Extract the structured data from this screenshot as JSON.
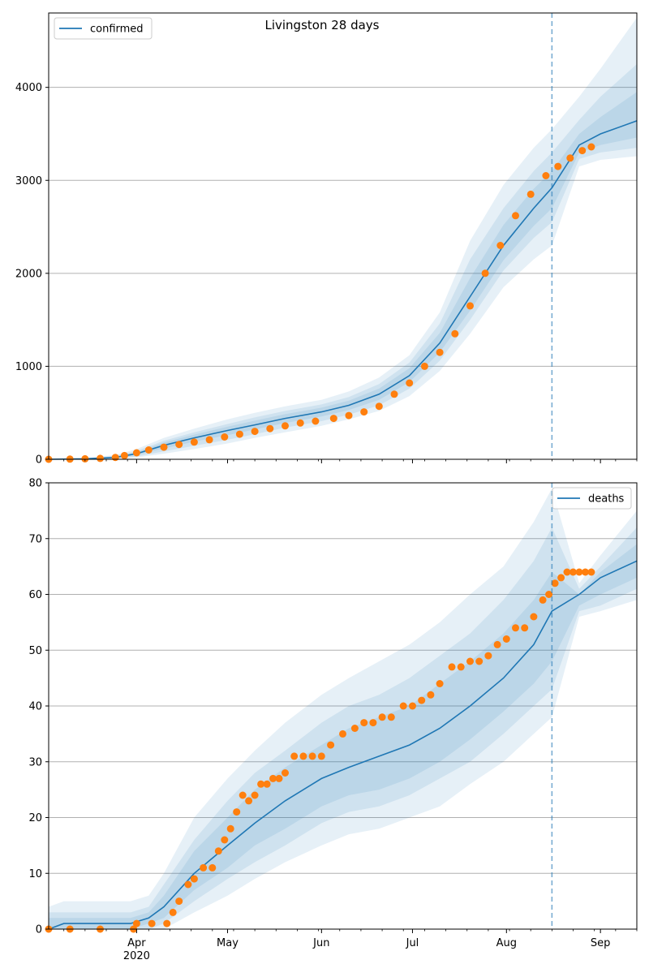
{
  "title": "Livingston 28 days",
  "colors": {
    "model_line": "#1f77b4",
    "observed_points": "#ff7f0e",
    "band": "#1f77b4",
    "grid": "#b0b0b0",
    "forecast_marker": "#1f77b4"
  },
  "x_axis": {
    "range": [
      "2020-03-03",
      "2020-09-13"
    ],
    "ticks": [
      {
        "date": "2020-04-01",
        "label": "Apr",
        "sublabel": "2020"
      },
      {
        "date": "2020-05-01",
        "label": "May",
        "sublabel": ""
      },
      {
        "date": "2020-06-01",
        "label": "Jun",
        "sublabel": ""
      },
      {
        "date": "2020-07-01",
        "label": "Jul",
        "sublabel": ""
      },
      {
        "date": "2020-08-01",
        "label": "Aug",
        "sublabel": ""
      },
      {
        "date": "2020-09-01",
        "label": "Sep",
        "sublabel": ""
      }
    ],
    "minor_ticks": [
      "2020-03-08",
      "2020-03-15",
      "2020-03-22",
      "2020-03-29",
      "2020-04-05",
      "2020-04-12",
      "2020-04-19",
      "2020-04-26",
      "2020-05-03",
      "2020-05-10",
      "2020-05-17",
      "2020-05-24",
      "2020-05-31",
      "2020-06-07",
      "2020-06-14",
      "2020-06-21",
      "2020-06-28",
      "2020-07-05",
      "2020-07-12",
      "2020-07-19",
      "2020-07-26",
      "2020-08-02",
      "2020-08-09",
      "2020-08-16",
      "2020-08-23",
      "2020-08-30",
      "2020-09-06",
      "2020-09-13"
    ],
    "forecast_start": "2020-08-16"
  },
  "chart_data": [
    {
      "type": "line",
      "panel": "top",
      "legend": {
        "label": "confirmed",
        "position": "upper-left"
      },
      "ylim": [
        0,
        4800
      ],
      "yticks": [
        0,
        1000,
        2000,
        3000,
        4000
      ],
      "grid": "horizontal",
      "model_series": {
        "name": "confirmed",
        "x": [
          "2020-03-03",
          "2020-03-15",
          "2020-03-25",
          "2020-04-01",
          "2020-04-10",
          "2020-04-20",
          "2020-05-01",
          "2020-05-10",
          "2020-05-20",
          "2020-06-01",
          "2020-06-10",
          "2020-06-20",
          "2020-06-30",
          "2020-07-10",
          "2020-07-20",
          "2020-07-31",
          "2020-08-10",
          "2020-08-16",
          "2020-08-25",
          "2020-09-01",
          "2020-09-13"
        ],
        "y": [
          0,
          5,
          20,
          60,
          150,
          230,
          310,
          370,
          440,
          510,
          580,
          700,
          900,
          1250,
          1750,
          2300,
          2700,
          2920,
          3380,
          3500,
          3640
        ]
      },
      "bands": [
        {
          "upper": [
            5,
            15,
            45,
            110,
            230,
            330,
            430,
            500,
            570,
            640,
            730,
            880,
            1120,
            1580,
            2350,
            2950,
            3350,
            3550,
            3900,
            4200,
            4750
          ],
          "lower": [
            0,
            0,
            5,
            20,
            60,
            110,
            170,
            230,
            290,
            360,
            430,
            520,
            680,
            950,
            1350,
            1850,
            2150,
            2300,
            3150,
            3220,
            3260
          ]
        },
        {
          "upper": [
            3,
            10,
            35,
            90,
            200,
            290,
            380,
            450,
            520,
            590,
            670,
            810,
            1040,
            1460,
            2150,
            2700,
            3100,
            3300,
            3650,
            3900,
            4250
          ],
          "lower": [
            0,
            1,
            8,
            30,
            85,
            145,
            210,
            270,
            340,
            410,
            480,
            580,
            760,
            1060,
            1500,
            2030,
            2380,
            2550,
            3230,
            3300,
            3350
          ]
        },
        {
          "upper": [
            1,
            7,
            28,
            75,
            180,
            265,
            350,
            415,
            485,
            555,
            630,
            760,
            980,
            1360,
            1950,
            2520,
            2910,
            3100,
            3500,
            3680,
            3950
          ],
          "lower": [
            0,
            2,
            12,
            45,
            115,
            190,
            260,
            320,
            390,
            460,
            530,
            640,
            830,
            1150,
            1600,
            2140,
            2510,
            2700,
            3300,
            3380,
            3460
          ]
        }
      ],
      "observed": {
        "x": [
          "2020-03-03",
          "2020-03-10",
          "2020-03-15",
          "2020-03-20",
          "2020-03-25",
          "2020-03-28",
          "2020-04-01",
          "2020-04-05",
          "2020-04-10",
          "2020-04-15",
          "2020-04-20",
          "2020-04-25",
          "2020-04-30",
          "2020-05-05",
          "2020-05-10",
          "2020-05-15",
          "2020-05-20",
          "2020-05-25",
          "2020-05-30",
          "2020-06-05",
          "2020-06-10",
          "2020-06-15",
          "2020-06-20",
          "2020-06-25",
          "2020-06-30",
          "2020-07-05",
          "2020-07-10",
          "2020-07-15",
          "2020-07-20",
          "2020-07-25",
          "2020-07-30",
          "2020-08-04",
          "2020-08-09",
          "2020-08-14",
          "2020-08-18",
          "2020-08-22",
          "2020-08-26",
          "2020-08-29"
        ],
        "y": [
          0,
          2,
          5,
          10,
          20,
          40,
          70,
          100,
          130,
          160,
          185,
          210,
          240,
          270,
          300,
          330,
          360,
          390,
          410,
          440,
          470,
          510,
          570,
          700,
          820,
          1000,
          1150,
          1350,
          1650,
          2000,
          2300,
          2620,
          2850,
          3050,
          3150,
          3240,
          3320,
          3360
        ]
      }
    },
    {
      "type": "line",
      "panel": "bottom",
      "legend": {
        "label": "deaths",
        "position": "upper-right"
      },
      "ylim": [
        0,
        80
      ],
      "yticks": [
        0,
        10,
        20,
        30,
        40,
        50,
        60,
        70,
        80
      ],
      "grid": "horizontal",
      "model_series": {
        "name": "deaths",
        "x": [
          "2020-03-03",
          "2020-03-08",
          "2020-03-30",
          "2020-04-05",
          "2020-04-10",
          "2020-04-20",
          "2020-05-01",
          "2020-05-10",
          "2020-05-20",
          "2020-06-01",
          "2020-06-10",
          "2020-06-20",
          "2020-06-30",
          "2020-07-10",
          "2020-07-20",
          "2020-07-31",
          "2020-08-10",
          "2020-08-16",
          "2020-08-25",
          "2020-09-01",
          "2020-09-13"
        ],
        "y": [
          0,
          1,
          1,
          2,
          4,
          10,
          15,
          19,
          23,
          27,
          29,
          31,
          33,
          36,
          40,
          45,
          51,
          57,
          60,
          63,
          66
        ]
      },
      "bands": [
        {
          "upper": [
            4,
            5,
            5,
            6,
            10,
            20,
            27,
            32,
            37,
            42,
            45,
            48,
            51,
            55,
            60,
            65,
            73,
            79,
            62,
            67,
            75
          ],
          "lower": [
            0,
            0,
            0,
            0,
            0,
            3,
            6,
            9,
            12,
            15,
            17,
            18,
            20,
            22,
            26,
            30,
            35,
            38,
            56,
            57,
            59
          ]
        },
        {
          "upper": [
            3,
            3,
            3,
            4,
            8,
            16,
            23,
            28,
            32,
            37,
            40,
            42,
            45,
            49,
            53,
            59,
            66,
            72,
            61,
            65,
            72
          ],
          "lower": [
            0,
            0,
            0,
            0,
            1,
            5,
            9,
            12,
            15,
            19,
            21,
            22,
            24,
            27,
            30,
            35,
            40,
            43,
            57,
            58,
            61
          ]
        },
        {
          "upper": [
            2,
            2,
            2,
            3,
            6,
            14,
            20,
            25,
            29,
            33,
            36,
            38,
            40,
            44,
            48,
            53,
            59,
            64,
            60,
            64,
            69
          ],
          "lower": [
            0,
            0,
            0,
            1,
            2,
            7,
            11,
            15,
            18,
            22,
            24,
            25,
            27,
            30,
            34,
            39,
            44,
            48,
            58,
            60,
            63
          ]
        }
      ],
      "observed": {
        "x": [
          "2020-03-03",
          "2020-03-10",
          "2020-03-20",
          "2020-03-31",
          "2020-04-01",
          "2020-04-06",
          "2020-04-11",
          "2020-04-13",
          "2020-04-15",
          "2020-04-18",
          "2020-04-20",
          "2020-04-23",
          "2020-04-26",
          "2020-04-28",
          "2020-04-30",
          "2020-05-02",
          "2020-05-04",
          "2020-05-06",
          "2020-05-08",
          "2020-05-10",
          "2020-05-12",
          "2020-05-14",
          "2020-05-16",
          "2020-05-18",
          "2020-05-20",
          "2020-05-23",
          "2020-05-26",
          "2020-05-29",
          "2020-06-01",
          "2020-06-04",
          "2020-06-08",
          "2020-06-12",
          "2020-06-15",
          "2020-06-18",
          "2020-06-21",
          "2020-06-24",
          "2020-06-28",
          "2020-07-01",
          "2020-07-04",
          "2020-07-07",
          "2020-07-10",
          "2020-07-14",
          "2020-07-17",
          "2020-07-20",
          "2020-07-23",
          "2020-07-26",
          "2020-07-29",
          "2020-08-01",
          "2020-08-04",
          "2020-08-07",
          "2020-08-10",
          "2020-08-13",
          "2020-08-15",
          "2020-08-17",
          "2020-08-19",
          "2020-08-21",
          "2020-08-23",
          "2020-08-25",
          "2020-08-27",
          "2020-08-29"
        ],
        "y": [
          0,
          0,
          0,
          0,
          1,
          1,
          1,
          3,
          5,
          8,
          9,
          11,
          11,
          14,
          16,
          18,
          21,
          24,
          23,
          24,
          26,
          26,
          27,
          27,
          28,
          31,
          31,
          31,
          31,
          33,
          35,
          36,
          37,
          37,
          38,
          38,
          40,
          40,
          41,
          42,
          44,
          47,
          47,
          48,
          48,
          49,
          51,
          52,
          54,
          54,
          56,
          59,
          60,
          62,
          63,
          64,
          64,
          64,
          64,
          64
        ]
      }
    }
  ]
}
